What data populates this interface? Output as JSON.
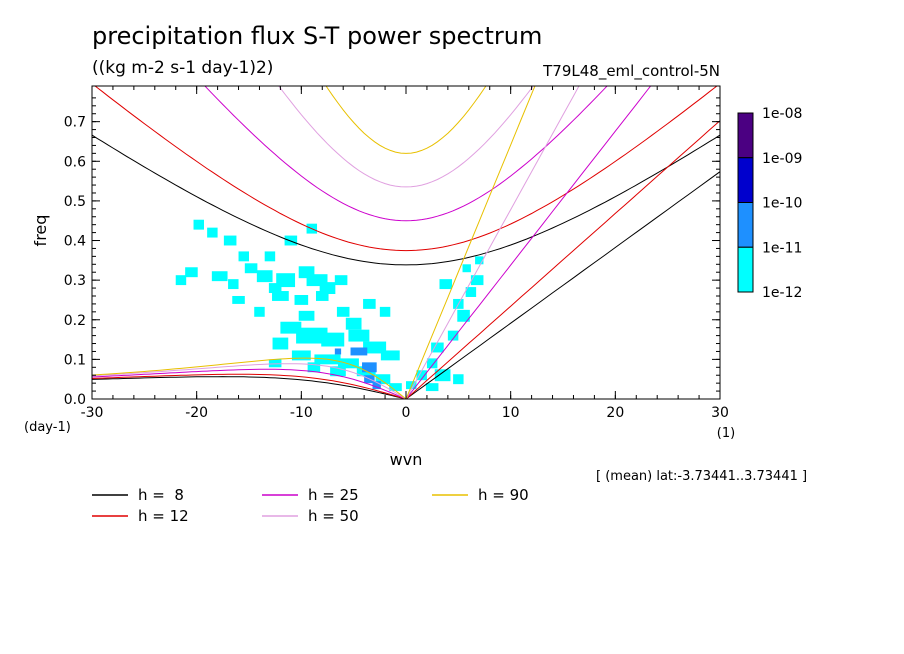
{
  "header": {
    "title": "precipitation flux S-T power spectrum",
    "subtitle": "((kg m-2 s-1 day-1)2)",
    "run_name": "T79L48_eml_control-5N",
    "lat_note": "[ (mean) lat:-3.73441..3.73441 ]"
  },
  "chart_data": {
    "type": "heatmap",
    "title": "precipitation flux S-T power spectrum",
    "subtitle": "((kg m-2 s-1 day-1)2)",
    "xlabel": "wvn",
    "ylabel": "freq",
    "x_unit_label": "(1)",
    "y_unit_label": "(day-1)",
    "xlim": [
      -30,
      30
    ],
    "ylim": [
      0,
      0.79
    ],
    "x_ticks": [
      -30,
      -20,
      -10,
      0,
      10,
      20,
      30
    ],
    "x_tick_labels": [
      "-30",
      "-20",
      "-10",
      "0",
      "10",
      "20",
      "30"
    ],
    "y_ticks": [
      0,
      0.1,
      0.2,
      0.3,
      0.4,
      0.5,
      0.6,
      0.7
    ],
    "y_tick_labels": [
      "0.0",
      "0.1",
      "0.2",
      "0.3",
      "0.4",
      "0.5",
      "0.6",
      "0.7"
    ],
    "colorbar": {
      "levels": [
        "1e-12",
        "1e-11",
        "1e-10",
        "1e-09",
        "1e-08"
      ],
      "colors": [
        "#00ffff",
        "#1e90ff",
        "#0000cd",
        "#4b0082"
      ]
    },
    "dispersion_curves": [
      {
        "name": "h =  8",
        "h": 8,
        "color": "#000000"
      },
      {
        "name": "h = 12",
        "h": 12,
        "color": "#e00000"
      },
      {
        "name": "h = 25",
        "h": 25,
        "color": "#cc00cc"
      },
      {
        "name": "h = 50",
        "h": 50,
        "color": "#e0a0e0"
      },
      {
        "name": "h = 90",
        "h": 90,
        "color": "#e8c000"
      }
    ],
    "spectrum_cells": [
      [
        -19.8,
        0.44,
        0,
        1.0,
        0.025
      ],
      [
        -18.5,
        0.42,
        0,
        1.0,
        0.025
      ],
      [
        -16.8,
        0.4,
        0,
        1.2,
        0.025
      ],
      [
        -15.5,
        0.36,
        0,
        1.0,
        0.025
      ],
      [
        -17.8,
        0.31,
        0,
        1.5,
        0.025
      ],
      [
        -16.5,
        0.29,
        0,
        1.0,
        0.025
      ],
      [
        -20.5,
        0.32,
        0,
        1.2,
        0.025
      ],
      [
        -21.5,
        0.3,
        0,
        1.0,
        0.025
      ],
      [
        -14.8,
        0.33,
        0,
        1.2,
        0.025
      ],
      [
        -13.5,
        0.31,
        0,
        1.5,
        0.03
      ],
      [
        -12.5,
        0.28,
        0,
        1.2,
        0.025
      ],
      [
        -11.5,
        0.3,
        0,
        1.8,
        0.035
      ],
      [
        -9.5,
        0.32,
        0,
        1.5,
        0.03
      ],
      [
        -8.5,
        0.3,
        0,
        2.0,
        0.03
      ],
      [
        -7.5,
        0.28,
        0,
        1.5,
        0.03
      ],
      [
        -6.2,
        0.3,
        0,
        1.2,
        0.025
      ],
      [
        -12.0,
        0.26,
        0,
        1.6,
        0.025
      ],
      [
        -10.0,
        0.25,
        0,
        1.3,
        0.025
      ],
      [
        -8.0,
        0.26,
        0,
        1.2,
        0.025
      ],
      [
        -13.0,
        0.36,
        0,
        1.0,
        0.025
      ],
      [
        -11.0,
        0.4,
        0,
        1.2,
        0.025
      ],
      [
        -9.0,
        0.43,
        0,
        1.0,
        0.025
      ],
      [
        -14.0,
        0.22,
        0,
        1.0,
        0.025
      ],
      [
        -9.5,
        0.21,
        0,
        1.5,
        0.025
      ],
      [
        -11.0,
        0.18,
        0,
        2.0,
        0.03
      ],
      [
        -9.0,
        0.16,
        0,
        3.0,
        0.04
      ],
      [
        -7.0,
        0.15,
        0,
        2.2,
        0.035
      ],
      [
        -12.0,
        0.14,
        0,
        1.5,
        0.03
      ],
      [
        -5.0,
        0.19,
        0,
        1.5,
        0.03
      ],
      [
        -6.0,
        0.22,
        0,
        1.2,
        0.025
      ],
      [
        -3.5,
        0.24,
        0,
        1.2,
        0.025
      ],
      [
        -2.0,
        0.22,
        0,
        1.0,
        0.025
      ],
      [
        -4.5,
        0.16,
        0,
        2.0,
        0.03
      ],
      [
        -3.0,
        0.13,
        0,
        2.2,
        0.03
      ],
      [
        -1.5,
        0.11,
        0,
        1.8,
        0.025
      ],
      [
        -10.0,
        0.11,
        0,
        1.8,
        0.025
      ],
      [
        -7.5,
        0.1,
        0,
        2.5,
        0.025
      ],
      [
        -5.5,
        0.09,
        0,
        2.0,
        0.025
      ],
      [
        -3.8,
        0.07,
        0,
        1.8,
        0.025
      ],
      [
        -2.2,
        0.05,
        0,
        1.4,
        0.025
      ],
      [
        -1.0,
        0.03,
        0,
        1.2,
        0.02
      ],
      [
        0.5,
        0.035,
        0,
        1.0,
        0.02
      ],
      [
        1.5,
        0.06,
        0,
        1.0,
        0.025
      ],
      [
        2.5,
        0.09,
        0,
        1.0,
        0.025
      ],
      [
        3.0,
        0.13,
        0,
        1.2,
        0.025
      ],
      [
        4.5,
        0.16,
        0,
        1.0,
        0.025
      ],
      [
        5.5,
        0.21,
        0,
        1.2,
        0.03
      ],
      [
        6.2,
        0.27,
        0,
        1.0,
        0.025
      ],
      [
        3.8,
        0.29,
        0,
        1.2,
        0.025
      ],
      [
        6.8,
        0.3,
        0,
        1.2,
        0.025
      ],
      [
        5.0,
        0.24,
        0,
        1.0,
        0.025
      ],
      [
        7.0,
        0.35,
        0,
        0.8,
        0.02
      ],
      [
        5.8,
        0.33,
        0,
        0.8,
        0.02
      ],
      [
        3.5,
        0.06,
        0,
        1.5,
        0.03
      ],
      [
        5.0,
        0.05,
        0,
        1.0,
        0.025
      ],
      [
        2.5,
        0.03,
        0,
        1.2,
        0.02
      ],
      [
        -6.5,
        0.07,
        0,
        1.5,
        0.025
      ],
      [
        -8.8,
        0.08,
        0,
        1.2,
        0.025
      ],
      [
        -12.5,
        0.09,
        0,
        1.2,
        0.02
      ],
      [
        -16.0,
        0.25,
        0,
        1.2,
        0.02
      ],
      [
        -4.5,
        0.12,
        1,
        1.6,
        0.02
      ],
      [
        -3.5,
        0.08,
        1,
        1.4,
        0.025
      ],
      [
        -3.5,
        0.05,
        1,
        1.0,
        0.02
      ],
      [
        -2.8,
        0.035,
        1,
        0.8,
        0.02
      ],
      [
        -6.5,
        0.12,
        1,
        0.6,
        0.015
      ]
    ]
  },
  "legend": [
    {
      "label": "h =  8",
      "color": "#000000"
    },
    {
      "label": "h = 12",
      "color": "#e00000"
    },
    {
      "label": "h = 25",
      "color": "#cc00cc"
    },
    {
      "label": "h = 50",
      "color": "#e0a0e0"
    },
    {
      "label": "h = 90",
      "color": "#e8c000"
    }
  ]
}
